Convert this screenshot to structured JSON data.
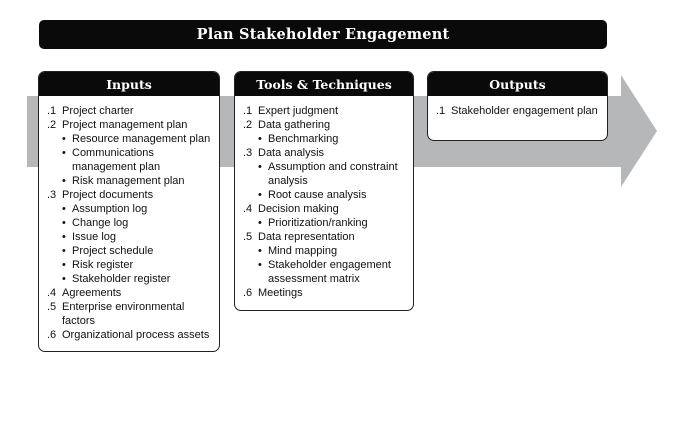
{
  "title": "Plan Stakeholder Engagement",
  "colors": {
    "header_bg": "#0a0a0a",
    "header_text": "#ffffff",
    "arrow": "#b5b7b9",
    "border": "#222222"
  },
  "inputs": {
    "header": "Inputs",
    "items": [
      {
        "num": ".1",
        "label": "Project charter",
        "subs": []
      },
      {
        "num": ".2",
        "label": "Project management plan",
        "subs": [
          "Resource management plan",
          "Communications management plan",
          "Risk management plan"
        ]
      },
      {
        "num": ".3",
        "label": "Project documents",
        "subs": [
          "Assumption log",
          "Change log",
          "Issue log",
          "Project schedule",
          "Risk register",
          "Stakeholder register"
        ]
      },
      {
        "num": ".4",
        "label": "Agreements",
        "subs": []
      },
      {
        "num": ".5",
        "label": "Enterprise environmental factors",
        "subs": []
      },
      {
        "num": ".6",
        "label": "Organizational process assets",
        "subs": []
      }
    ]
  },
  "tools": {
    "header": "Tools & Techniques",
    "items": [
      {
        "num": ".1",
        "label": "Expert judgment",
        "subs": []
      },
      {
        "num": ".2",
        "label": "Data gathering",
        "subs": [
          "Benchmarking"
        ]
      },
      {
        "num": ".3",
        "label": "Data analysis",
        "subs": [
          "Assumption and constraint analysis",
          "Root cause analysis"
        ]
      },
      {
        "num": ".4",
        "label": "Decision making",
        "subs": [
          "Prioritization/ranking"
        ]
      },
      {
        "num": ".5",
        "label": "Data representation",
        "subs": [
          "Mind mapping",
          "Stakeholder engagement assessment matrix"
        ]
      },
      {
        "num": ".6",
        "label": "Meetings",
        "subs": []
      }
    ]
  },
  "outputs": {
    "header": "Outputs",
    "items": [
      {
        "num": ".1",
        "label": "Stakeholder engagement plan",
        "subs": []
      }
    ]
  }
}
